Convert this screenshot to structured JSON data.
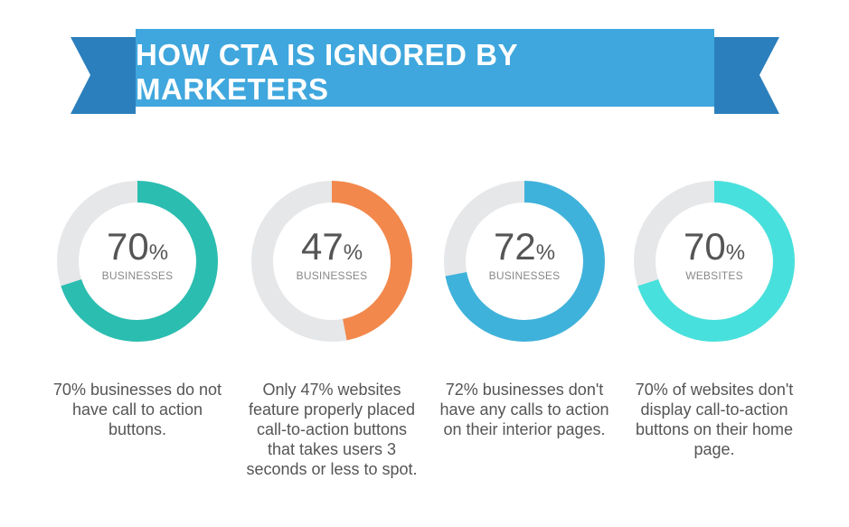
{
  "title": "HOW CTA IS IGNORED BY MARKETERS",
  "colors": {
    "banner_front": "#3fa7dd",
    "banner_back": "#2b7fbc",
    "track": "#e6e7e9"
  },
  "chart_data": [
    {
      "type": "pie",
      "value": 70,
      "unit": "%",
      "label": "BUSINESSES",
      "color": "#2bbdb0",
      "caption": "70% businesses do not have call to action buttons."
    },
    {
      "type": "pie",
      "value": 47,
      "unit": "%",
      "label": "BUSINESSES",
      "color": "#f2884b",
      "caption": "Only 47% websites feature properly placed call-to-action buttons that takes users 3 seconds or less to spot."
    },
    {
      "type": "pie",
      "value": 72,
      "unit": "%",
      "label": "BUSINESSES",
      "color": "#3fb2db",
      "caption": "72% businesses don't have any calls to action on their interior pages."
    },
    {
      "type": "pie",
      "value": 70,
      "unit": "%",
      "label": "WEBSITES",
      "color": "#48e0dc",
      "caption": "70% of websites don't display call-to-action buttons on their home page."
    }
  ]
}
